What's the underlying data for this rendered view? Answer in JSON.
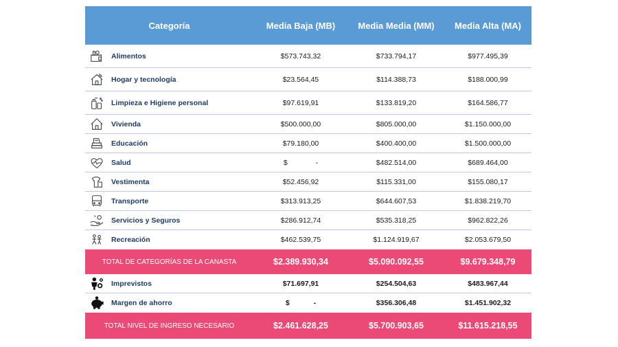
{
  "header": {
    "categoria": "Categoría",
    "mb": "Media Baja (MB)",
    "mm": "Media Media (MM)",
    "ma": "Media Alta (MA)"
  },
  "rows": [
    {
      "label": "Alimentos",
      "icon": "basket-icon",
      "mb": "$573.743,32",
      "mm": "$733.794,17",
      "ma": "$977.495,39"
    },
    {
      "label": "Hogar y tecnología",
      "icon": "smart-home-icon",
      "mb": "$23.564,45",
      "mm": "$114.388,73",
      "ma": "$188.000,99"
    },
    {
      "label": "Limpieza e Higiene personal",
      "icon": "cleaning-icon",
      "mb": "$97.619,91",
      "mm": "$133.819,20",
      "ma": "$164.586,77"
    },
    {
      "label": "Vivienda",
      "icon": "house-icon",
      "mb": "$500.000,00",
      "mm": "$805.000,00",
      "ma": "$1.150.000,00"
    },
    {
      "label": "Educación",
      "icon": "books-icon",
      "mb": "$79.180,00",
      "mm": "$400.400,00",
      "ma": "$1.500.000,00"
    },
    {
      "label": "Salud",
      "icon": "heart-pulse-icon",
      "mb": "$              -",
      "mm": "$482.514,00",
      "ma": "$689.464,00"
    },
    {
      "label": "Vestimenta",
      "icon": "clothes-icon",
      "mb": "$52.456,92",
      "mm": "$115.331,00",
      "ma": "$155.080,17"
    },
    {
      "label": "Transporte",
      "icon": "bus-icon",
      "mb": "$313.913,25",
      "mm": "$644.607,53",
      "ma": "$1.838.219,70"
    },
    {
      "label": "Servicios y Seguros",
      "icon": "hand-service-icon",
      "mb": "$286.912,74",
      "mm": "$535.318,25",
      "ma": "$962.822,26"
    },
    {
      "label": "Recreación",
      "icon": "recreation-icon",
      "mb": "$462.539,75",
      "mm": "$1.124.919,67",
      "ma": "$2.053.679,50"
    }
  ],
  "total_canasta": {
    "label": "TOTAL DE CATEGORÍAS DE LA CANASTA",
    "mb": "$2.389.930,34",
    "mm": "$5.090.092,55",
    "ma": "$9.679.348,79"
  },
  "extras": [
    {
      "label": "Imprevistos",
      "icon": "person-gear-icon",
      "mb": "$71.697,91",
      "mm": "$254.504,63",
      "ma": "$483.967,44"
    },
    {
      "label": "Margen de ahorro",
      "icon": "piggy-bank-icon",
      "mb": "$            -",
      "mm": "$356.306,48",
      "ma": "$1.451.902,32"
    }
  ],
  "total_ingreso": {
    "label": "TOTAL NIVEL DE INGRESO NECESARIO",
    "mb": "$2.461.628,25",
    "mm": "$5.700.903,65",
    "ma": "$11.615.218,55"
  }
}
